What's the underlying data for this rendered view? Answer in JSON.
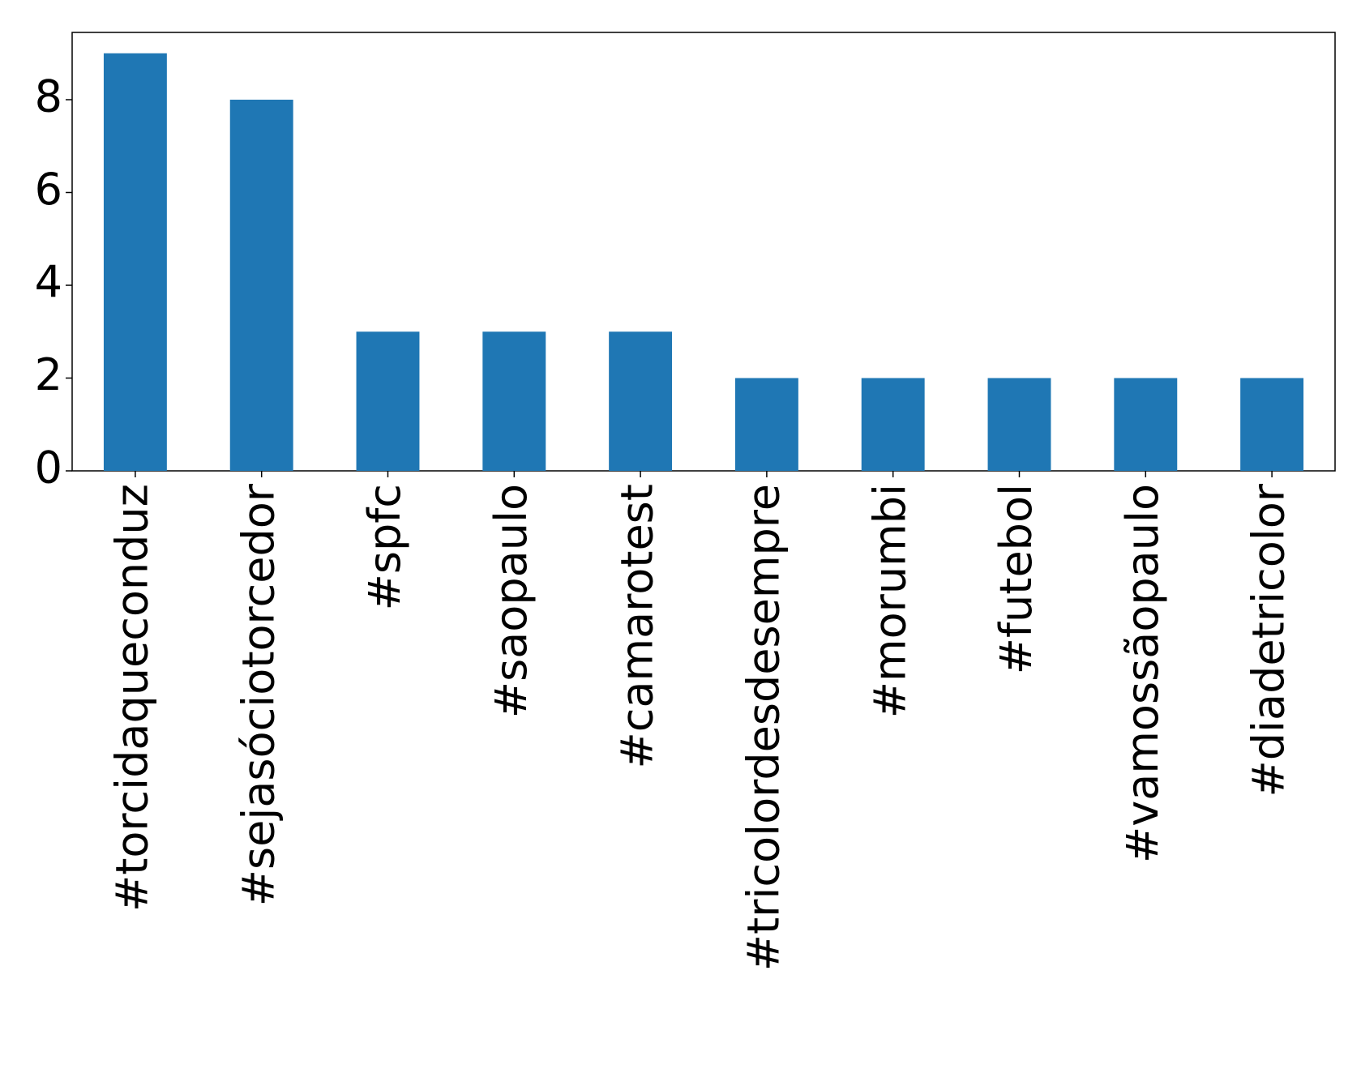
{
  "chart_data": {
    "type": "bar",
    "categories": [
      "#torcidaqueconduz",
      "#sejasóciotorcedor",
      "#spfc",
      "#saopaulo",
      "#camarotest",
      "#tricolordesdesempre",
      "#morumbi",
      "#futebol",
      "#vamossãopaulo",
      "#diadetricolor"
    ],
    "values": [
      9,
      8,
      3,
      3,
      3,
      2,
      2,
      2,
      2,
      2
    ],
    "color": "#1f77b4",
    "ylim": [
      0,
      9.45
    ],
    "yticks": [
      0,
      2,
      4,
      6,
      8
    ],
    "grid": false
  }
}
